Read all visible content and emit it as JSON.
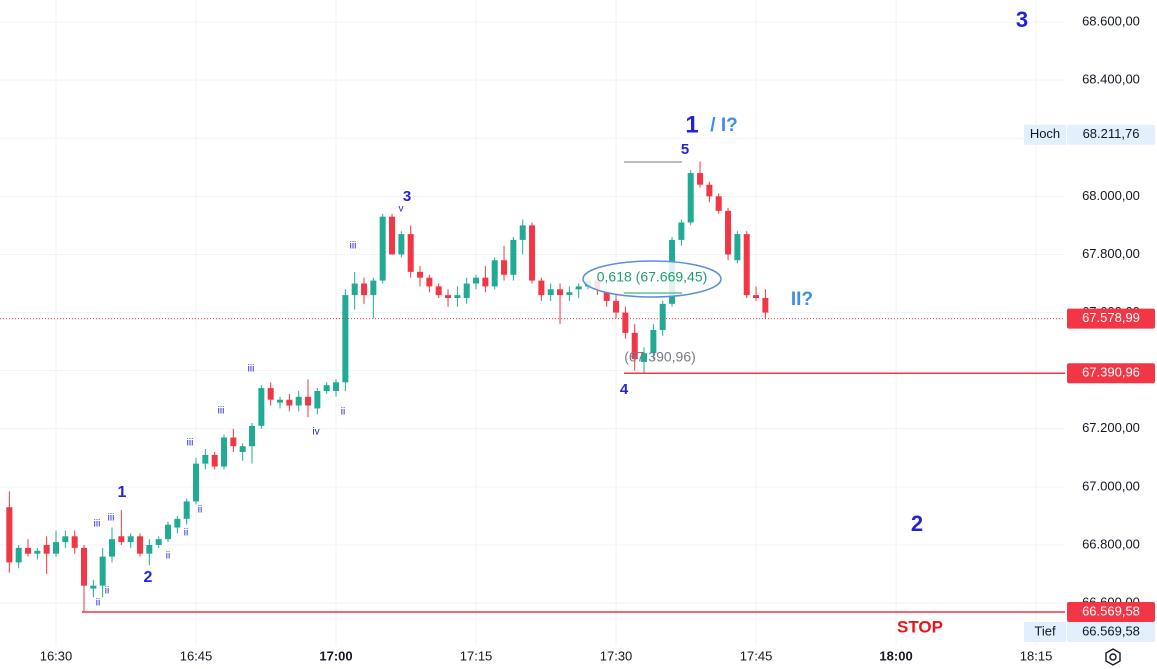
{
  "chart_data": {
    "type": "candlestick",
    "x": [
      985,
      986,
      987,
      988,
      989,
      990,
      991,
      992,
      993,
      994,
      995,
      996,
      997,
      998,
      999,
      1000,
      1001,
      1002,
      1003,
      1004,
      1005,
      1006,
      1007,
      1008,
      1009,
      1010,
      1011,
      1012,
      1013,
      1014,
      1015,
      1016,
      1017,
      1018,
      1019,
      1020,
      1021,
      1022,
      1023,
      1024,
      1025,
      1026,
      1027,
      1028,
      1029,
      1030,
      1031,
      1032,
      1033,
      1034,
      1035,
      1036,
      1037,
      1038,
      1039,
      1040,
      1041,
      1042,
      1043,
      1044,
      1045,
      1046,
      1047,
      1048,
      1049,
      1050,
      1051,
      1052,
      1053,
      1054,
      1055,
      1056,
      1057,
      1058,
      1059,
      1060,
      1061,
      1062,
      1063,
      1064,
      1065,
      1066
    ],
    "open": [
      66930,
      66740,
      66790,
      66770,
      66800,
      66770,
      66810,
      66830,
      66790,
      66650,
      66660,
      66760,
      66830,
      66810,
      66830,
      66770,
      66800,
      66820,
      66860,
      66890,
      66950,
      67080,
      67110,
      67070,
      67170,
      67120,
      67140,
      67210,
      67340,
      67290,
      67300,
      67280,
      67310,
      67270,
      67330,
      67330,
      67360,
      67660,
      67700,
      67660,
      67710,
      67930,
      67800,
      67870,
      67740,
      67720,
      67690,
      67660,
      67650,
      67650,
      67700,
      67720,
      67690,
      67780,
      67730,
      67850,
      67900,
      67710,
      67660,
      67680,
      67660,
      67680,
      67690,
      67710,
      67670,
      67640,
      67600,
      67530,
      67430,
      67460,
      67540,
      67630,
      67850,
      67910,
      68080,
      68040,
      68000,
      67950,
      67780,
      67870,
      67660,
      67650
    ],
    "high": [
      66985,
      66800,
      66820,
      66790,
      66830,
      66850,
      66850,
      66850,
      66800,
      66680,
      66790,
      66860,
      66920,
      66840,
      66840,
      66820,
      66830,
      66880,
      66900,
      66960,
      67100,
      67130,
      67120,
      67180,
      67200,
      67150,
      67220,
      67350,
      67360,
      67310,
      67320,
      67330,
      67370,
      67340,
      67360,
      67370,
      67680,
      67740,
      67720,
      67720,
      67940,
      67940,
      67880,
      67900,
      67760,
      67730,
      67700,
      67680,
      67690,
      67720,
      67730,
      67760,
      67790,
      67830,
      67860,
      67920,
      67910,
      67720,
      67700,
      67700,
      67690,
      67700,
      67720,
      67730,
      67680,
      67660,
      67620,
      67560,
      67480,
      67560,
      67640,
      67860,
      67920,
      68090,
      68120,
      68050,
      68010,
      67960,
      67880,
      67880,
      67690,
      67680
    ],
    "low": [
      66705,
      66720,
      66760,
      66750,
      66700,
      66760,
      66790,
      66770,
      66570,
      66620,
      66620,
      66740,
      66800,
      66790,
      66760,
      66730,
      66790,
      66810,
      66840,
      66870,
      66940,
      67060,
      67060,
      67060,
      67120,
      67090,
      67080,
      67200,
      67280,
      67270,
      67260,
      67260,
      67240,
      67250,
      67320,
      67310,
      67330,
      67610,
      67630,
      67580,
      67700,
      67800,
      67790,
      67720,
      67690,
      67670,
      67650,
      67620,
      67620,
      67630,
      67680,
      67670,
      67680,
      67710,
      67710,
      67800,
      67700,
      67640,
      67640,
      67560,
      67640,
      67650,
      67680,
      67660,
      67620,
      67580,
      67510,
      67400,
      67391,
      67440,
      67520,
      67620,
      67830,
      67900,
      68030,
      67980,
      67940,
      67780,
      67770,
      67650,
      67640,
      67580
    ],
    "close": [
      66740,
      66790,
      66770,
      66780,
      66770,
      66810,
      66830,
      66790,
      66660,
      66660,
      66760,
      66820,
      66810,
      66830,
      66770,
      66800,
      66820,
      66870,
      66890,
      66950,
      67080,
      67110,
      67070,
      67170,
      67140,
      67140,
      67210,
      67340,
      67300,
      67300,
      67280,
      67310,
      67280,
      67330,
      67350,
      67360,
      67660,
      67700,
      67660,
      67710,
      67930,
      67800,
      67870,
      67740,
      67720,
      67690,
      67660,
      67650,
      67660,
      67700,
      67720,
      67690,
      67780,
      67730,
      67850,
      67900,
      67710,
      67660,
      67680,
      67660,
      67670,
      67690,
      67710,
      67680,
      67640,
      67600,
      67530,
      67440,
      67460,
      67540,
      67630,
      67850,
      67910,
      68080,
      68040,
      68000,
      67950,
      67800,
      67870,
      67660,
      67650,
      67600
    ],
    "up_color": "#22ab94",
    "down_color": "#f23645",
    "xlim": [
      984,
      1098.1
    ],
    "ylim": [
      66455.8,
      68675.7
    ],
    "xticks": [
      {
        "value": 990,
        "label": "16:30"
      },
      {
        "value": 1005,
        "label": "16:45"
      },
      {
        "value": 1020,
        "label": "17:00"
      },
      {
        "value": 1035,
        "label": "17:15"
      },
      {
        "value": 1050,
        "label": "17:30"
      },
      {
        "value": 1065,
        "label": "17:45"
      },
      {
        "value": 1080,
        "label": "18:00"
      },
      {
        "value": 1095,
        "label": "18:15"
      }
    ],
    "yticks": [
      {
        "value": 66600,
        "label": "66.600,00"
      },
      {
        "value": 66800,
        "label": "66.800,00"
      },
      {
        "value": 67000,
        "label": "67.000,00"
      },
      {
        "value": 67200,
        "label": "67.200,00"
      },
      {
        "value": 67400,
        "label": "67.400,00"
      },
      {
        "value": 67600,
        "label": "67.600,00"
      },
      {
        "value": 67800,
        "label": "67.800,00"
      },
      {
        "value": 68000,
        "label": "68.000,00"
      },
      {
        "value": 68200,
        "label": "68.200,00"
      },
      {
        "value": 68400,
        "label": "68.400,00"
      },
      {
        "value": 68600,
        "label": "68.600,00"
      }
    ],
    "grid": true,
    "levels": [
      {
        "name": "Hoch",
        "value": 68211.76,
        "label": "68.211,76",
        "color": "#e3effd"
      },
      {
        "value": 67578.99,
        "label": "67.578,99",
        "color": "#f23645"
      },
      {
        "value": 67390.96,
        "label": "67.390,96",
        "color": "#f23645"
      },
      {
        "value": 66569.58,
        "label": "66.569,58",
        "color": "#f23645"
      },
      {
        "name": "Tief",
        "value": 66569.58,
        "label": "66.569,58",
        "color": "#e3effd"
      }
    ],
    "annotations": [
      {
        "text": "3",
        "color": "#2424d6"
      },
      {
        "text": "1",
        "color": "#2424d6"
      },
      {
        "text": "/ I?",
        "color": "#3b8fe8"
      },
      {
        "text": "5",
        "color": "#2424d6"
      },
      {
        "text": "3",
        "color": "#2424d6"
      },
      {
        "text": "v",
        "color": "#2424d6"
      },
      {
        "text": "II?",
        "color": "#3b8fe8"
      },
      {
        "text": "4",
        "color": "#2424d6"
      },
      {
        "text": "2",
        "color": "#2424d6"
      },
      {
        "text": "1",
        "color": "#2424d6"
      },
      {
        "text": "2",
        "color": "#2424d6"
      },
      {
        "text": "iii",
        "color": "#2424d6"
      },
      {
        "text": "iii",
        "color": "#2424d6"
      },
      {
        "text": "ii",
        "color": "#2424d6"
      },
      {
        "text": "ii",
        "color": "#2424d6"
      },
      {
        "text": "ii",
        "color": "#2424d6"
      },
      {
        "text": "ii",
        "color": "#2424d6"
      },
      {
        "text": "ii",
        "color": "#2424d6"
      },
      {
        "text": "iii",
        "color": "#2424d6"
      },
      {
        "text": "iii",
        "color": "#2424d6"
      },
      {
        "text": "iii",
        "color": "#2424d6"
      },
      {
        "text": "iv",
        "color": "#2424d6"
      },
      {
        "text": "ii",
        "color": "#2424d6"
      },
      {
        "text": "iii",
        "color": "#2424d6"
      },
      {
        "text": "(67.390,96)",
        "color": "#787b86"
      },
      {
        "text": "0,618 (67.669,45)",
        "color": "#1e9e73"
      },
      {
        "text": "STOP",
        "color": "#e8151b"
      }
    ]
  }
}
